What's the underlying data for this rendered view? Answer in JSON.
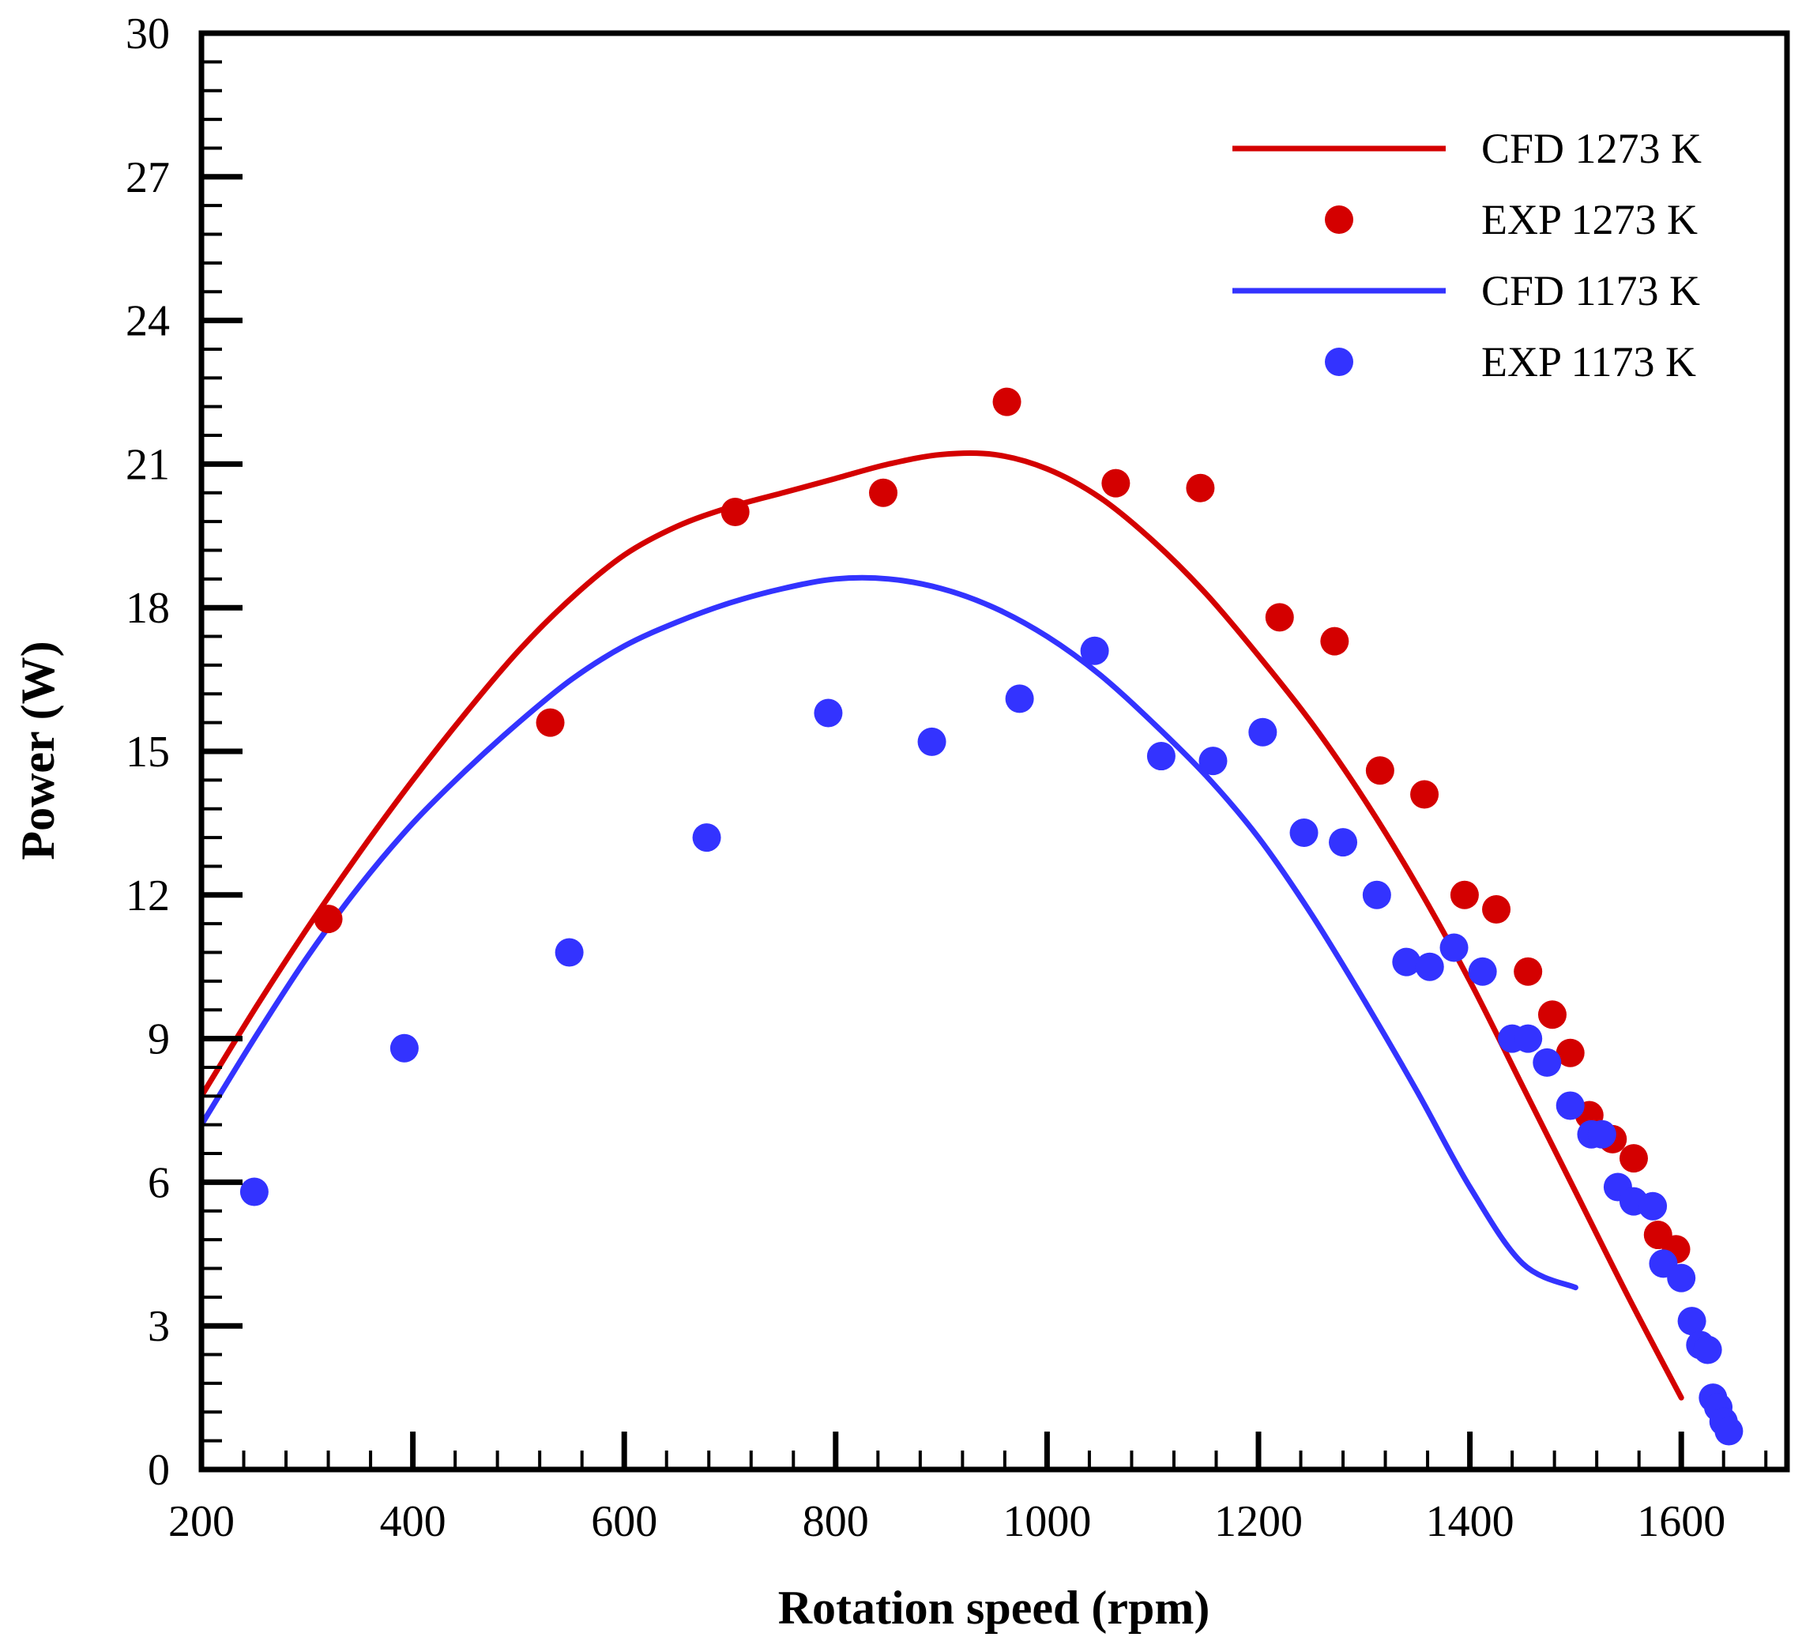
{
  "chart_data": {
    "type": "scatter",
    "xlabel": "Rotation speed (rpm)",
    "ylabel": "Power (W)",
    "xlim": [
      200,
      1700
    ],
    "ylim": [
      0,
      30
    ],
    "x_ticks": [
      200,
      400,
      600,
      800,
      1000,
      1200,
      1400,
      1600
    ],
    "y_ticks": [
      0,
      3,
      6,
      9,
      12,
      15,
      18,
      21,
      24,
      27,
      30
    ],
    "x_tick_labels": [
      "200",
      "400",
      "600",
      "800",
      "1000",
      "1200",
      "1400",
      "1600"
    ],
    "y_tick_labels": [
      "0",
      "3",
      "6",
      "9",
      "12",
      "15",
      "18",
      "21",
      "24",
      "27",
      "30"
    ],
    "grid": false,
    "legend_position": "top-right",
    "series": [
      {
        "name": "CFD 1273 K",
        "kind": "line",
        "color": "#d40000",
        "x": [
          200,
          250,
          300,
          350,
          400,
          450,
          500,
          550,
          600,
          650,
          700,
          750,
          800,
          850,
          900,
          950,
          1000,
          1050,
          1100,
          1150,
          1200,
          1250,
          1300,
          1350,
          1400,
          1450,
          1500,
          1550,
          1600
        ],
        "y": [
          7.8,
          9.6,
          11.3,
          12.9,
          14.4,
          15.8,
          17.1,
          18.2,
          19.1,
          19.7,
          20.1,
          20.4,
          20.7,
          21.0,
          21.2,
          21.2,
          20.9,
          20.3,
          19.4,
          18.3,
          17.0,
          15.6,
          14.0,
          12.2,
          10.2,
          8.0,
          5.8,
          3.6,
          1.5
        ]
      },
      {
        "name": "EXP 1273 K",
        "kind": "scatter",
        "color": "#d40000",
        "x": [
          320,
          530,
          705,
          845,
          962,
          1065,
          1145,
          1220,
          1272,
          1315,
          1357,
          1395,
          1425,
          1455,
          1478,
          1495,
          1513,
          1535,
          1555,
          1578,
          1595
        ],
        "y": [
          11.5,
          15.6,
          20.0,
          20.4,
          22.3,
          20.6,
          20.5,
          17.8,
          17.3,
          14.6,
          14.1,
          12.0,
          11.7,
          10.4,
          9.5,
          8.7,
          7.4,
          6.9,
          6.5,
          4.9,
          4.6
        ]
      },
      {
        "name": "CFD 1173 K",
        "kind": "line",
        "color": "#3333ff",
        "x": [
          200,
          250,
          300,
          350,
          400,
          450,
          500,
          550,
          600,
          650,
          700,
          750,
          800,
          850,
          900,
          950,
          1000,
          1050,
          1100,
          1150,
          1200,
          1250,
          1300,
          1350,
          1400,
          1450,
          1500
        ],
        "y": [
          7.2,
          9.0,
          10.7,
          12.2,
          13.5,
          14.6,
          15.6,
          16.5,
          17.2,
          17.7,
          18.1,
          18.4,
          18.6,
          18.6,
          18.4,
          18.0,
          17.4,
          16.6,
          15.6,
          14.5,
          13.2,
          11.6,
          9.8,
          7.9,
          5.9,
          4.3,
          3.8
        ]
      },
      {
        "name": "EXP 1173 K",
        "kind": "scatter",
        "color": "#3333ff",
        "x": [
          250,
          392,
          548,
          678,
          793,
          891,
          974,
          1045,
          1108,
          1157,
          1204,
          1243,
          1280,
          1312,
          1340,
          1362,
          1385,
          1412,
          1440,
          1455,
          1473,
          1495,
          1515,
          1525,
          1540,
          1555,
          1573,
          1583,
          1600,
          1610,
          1618,
          1625,
          1630,
          1635,
          1640,
          1645
        ],
        "y": [
          5.8,
          8.8,
          10.8,
          13.2,
          15.8,
          15.2,
          16.1,
          17.1,
          14.9,
          14.8,
          15.4,
          13.3,
          13.1,
          12.0,
          10.6,
          10.5,
          10.9,
          10.4,
          9.0,
          9.0,
          8.5,
          7.6,
          7.0,
          7.0,
          5.9,
          5.6,
          5.5,
          4.3,
          4.0,
          3.1,
          2.6,
          2.5,
          1.5,
          1.3,
          1.0,
          0.8
        ]
      }
    ]
  }
}
